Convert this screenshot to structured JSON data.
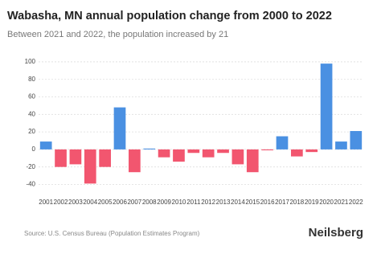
{
  "chart_data": {
    "type": "bar",
    "title": "Wabasha, MN annual population change from 2000 to 2022",
    "subtitle": "Between 2021 and 2022, the population increased by 21",
    "source": "Source: U.S. Census Bureau (Population Estimates Program)",
    "brand": "Neilsberg",
    "categories": [
      "2001",
      "2002",
      "2003",
      "2004",
      "2005",
      "2006",
      "2007",
      "2008",
      "2009",
      "2010",
      "2011",
      "2012",
      "2013",
      "2014",
      "2015",
      "2016",
      "2017",
      "2018",
      "2019",
      "2020",
      "2021",
      "2022"
    ],
    "values": [
      9,
      -20,
      -17,
      -39,
      -20,
      48,
      -26,
      1,
      -9,
      -14,
      -4,
      -9,
      -4,
      -17,
      -26,
      -1,
      15,
      -8,
      -3,
      98,
      9,
      21
    ],
    "positive_color": "#4a90e2",
    "negative_color": "#f2566f",
    "ylim": [
      -46,
      104
    ],
    "yticks": [
      -40,
      -20,
      0,
      20,
      40,
      60,
      80,
      100
    ],
    "grid": true
  }
}
